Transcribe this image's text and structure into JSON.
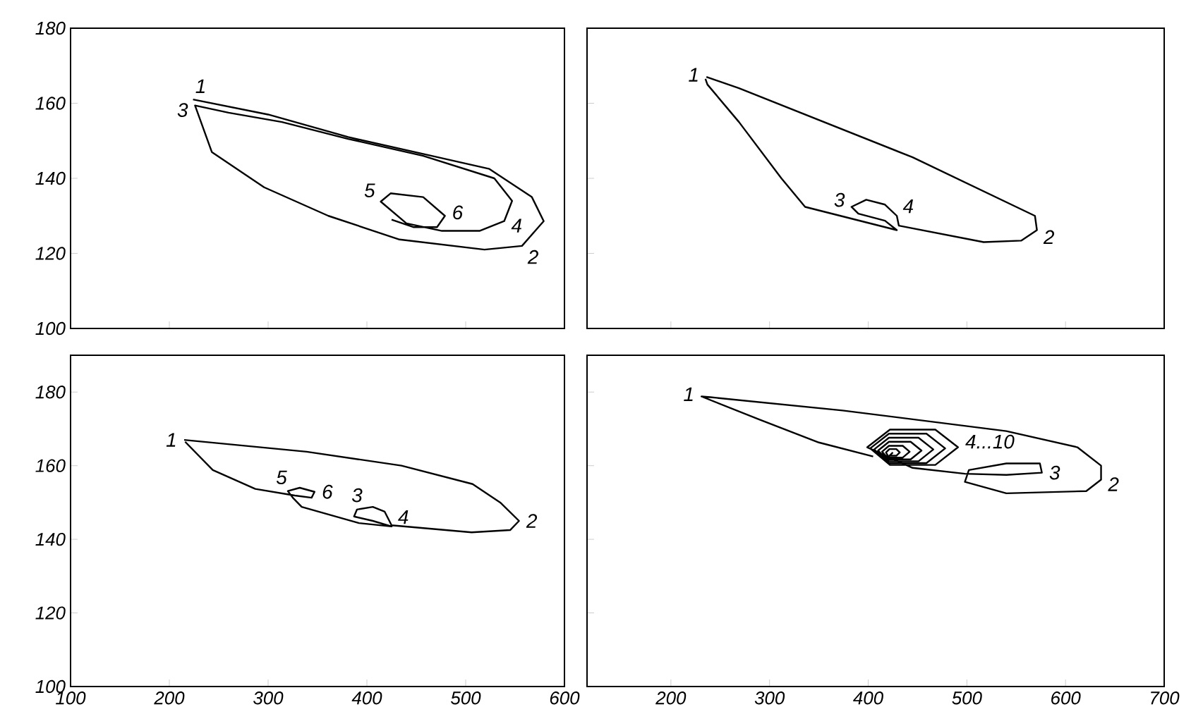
{
  "chart_data": [
    {
      "type": "line",
      "xlim": [
        100,
        600
      ],
      "ylim": [
        100,
        180
      ],
      "xticks": [
        100,
        200,
        300,
        400,
        500,
        600
      ],
      "yticks": [
        100,
        120,
        140,
        160,
        180
      ],
      "tick_labels": "y",
      "series": [
        {
          "color": "#000000",
          "x": [
            224,
            300,
            381,
            457,
            524,
            567,
            579,
            557,
            519,
            433,
            361,
            296,
            243,
            226,
            260,
            314,
            381,
            457,
            529,
            547,
            539,
            514,
            476,
            440,
            414,
            424,
            457,
            479,
            471,
            447,
            425
          ],
          "values": [
            161,
            157,
            151,
            146.5,
            142.5,
            135,
            128.6,
            122,
            121,
            123.7,
            130,
            137.6,
            147,
            159.4,
            157.5,
            155,
            150.5,
            146,
            140,
            134,
            128.6,
            126,
            126,
            128,
            133.8,
            136,
            135,
            130,
            127,
            127,
            129
          ]
        }
      ],
      "annotations": [
        {
          "text": "1",
          "x": 224,
          "y": 161
        },
        {
          "text": "2",
          "x": 557,
          "y": 122
        },
        {
          "text": "3",
          "x": 226,
          "y": 159.4
        },
        {
          "text": "4",
          "x": 539,
          "y": 128.6
        },
        {
          "text": "5",
          "x": 414,
          "y": 133.8
        },
        {
          "text": "6",
          "x": 479,
          "y": 130
        }
      ]
    },
    {
      "type": "line",
      "xlim": [
        115,
        700
      ],
      "ylim": [
        100,
        180
      ],
      "xticks": [
        200,
        300,
        400,
        500,
        600,
        700
      ],
      "yticks": [
        100,
        120,
        140,
        160,
        180
      ],
      "tick_labels": false,
      "series": [
        {
          "color": "#000000",
          "x": [
            236,
            269,
            445,
            569,
            571,
            555,
            517,
            431,
            429,
            417,
            398,
            383,
            390,
            417,
            429,
            336,
            312,
            269,
            237,
            235
          ],
          "values": [
            167,
            164,
            145.6,
            130,
            126.2,
            123.4,
            123,
            127.4,
            130,
            133,
            134.3,
            132.4,
            130.6,
            128.7,
            126.2,
            132.4,
            140,
            155,
            165,
            166.5
          ]
        }
      ],
      "annotations": [
        {
          "text": "1",
          "x": 236,
          "y": 167
        },
        {
          "text": "2",
          "x": 571,
          "y": 126.2
        },
        {
          "text": "3",
          "x": 383,
          "y": 132.4
        },
        {
          "text": "4",
          "x": 429,
          "y": 130
        }
      ]
    },
    {
      "type": "line",
      "xlim": [
        100,
        600
      ],
      "ylim": [
        100,
        190
      ],
      "xticks": [
        100,
        200,
        300,
        400,
        500,
        600
      ],
      "yticks": [
        100,
        120,
        140,
        160,
        180
      ],
      "series": [
        {
          "color": "#000000",
          "x": [
            215,
            339,
            435,
            507,
            535,
            554,
            545,
            506,
            425,
            418,
            406,
            390,
            387,
            406,
            425,
            392,
            334,
            325,
            320,
            332,
            347,
            344,
            327,
            287,
            244,
            216
          ],
          "values": [
            167,
            163.8,
            160,
            155,
            150,
            145,
            142.5,
            141.9,
            143.8,
            147.5,
            148.8,
            148.1,
            146.2,
            145,
            143.5,
            144.4,
            148.8,
            151.3,
            153.1,
            154,
            152.9,
            151.3,
            151.9,
            153.7,
            158.8,
            166.5
          ]
        }
      ],
      "annotations": [
        {
          "text": "1",
          "x": 215,
          "y": 167
        },
        {
          "text": "2",
          "x": 554,
          "y": 145
        },
        {
          "text": "3",
          "x": 390,
          "y": 148.1
        },
        {
          "text": "4",
          "x": 425,
          "y": 143.8
        },
        {
          "text": "5",
          "x": 320,
          "y": 153.1
        },
        {
          "text": "6",
          "x": 347,
          "y": 152.9
        }
      ]
    },
    {
      "type": "line",
      "xlim": [
        115,
        700
      ],
      "ylim": [
        100,
        190
      ],
      "xticks": [
        200,
        300,
        400,
        500,
        600,
        700
      ],
      "yticks": [
        100,
        120,
        140,
        160,
        180
      ],
      "tick_labels": "x",
      "series": [
        {
          "color": "#000000",
          "x": [
            405,
            350,
            290,
            231,
            240,
            374,
            540,
            612,
            636,
            636,
            621,
            540,
            498,
            502,
            540,
            574,
            576,
            540,
            498,
            445,
            399,
            422,
            468,
            491,
            468,
            422,
            402,
            421,
            459,
            478,
            459,
            421,
            406,
            421,
            451,
            466,
            451,
            421,
            410,
            421,
            443,
            454,
            443,
            421,
            414,
            421,
            435,
            442,
            435,
            421,
            418,
            421.5,
            428.5,
            432,
            428.5,
            421.5,
            425
          ],
          "values": [
            162.5,
            166.3,
            172.5,
            178.8,
            178.6,
            175,
            169.4,
            165,
            160,
            156.2,
            153.1,
            152.5,
            155.6,
            158.8,
            160.6,
            160.6,
            158.1,
            157.5,
            157.8,
            159.4,
            165,
            169.8,
            169.8,
            165,
            160.2,
            160.2,
            164.7,
            168.7,
            168.7,
            164.7,
            160.7,
            160.7,
            164.4,
            167.6,
            167.6,
            164.4,
            161.2,
            161.2,
            164.1,
            166.5,
            166.5,
            164.1,
            161.7,
            161.7,
            163.8,
            165.4,
            165.4,
            163.8,
            162.2,
            162.2,
            163.6,
            164.5,
            164.5,
            163.6,
            162.7,
            162.7,
            163.6
          ]
        }
      ],
      "annotations": [
        {
          "text": "1",
          "x": 231,
          "y": 178.8
        },
        {
          "text": "2",
          "x": 636,
          "y": 156.2
        },
        {
          "text": "3",
          "x": 576,
          "y": 158.1
        },
        {
          "text": "4...10",
          "x": 491,
          "y": 165
        }
      ]
    }
  ]
}
